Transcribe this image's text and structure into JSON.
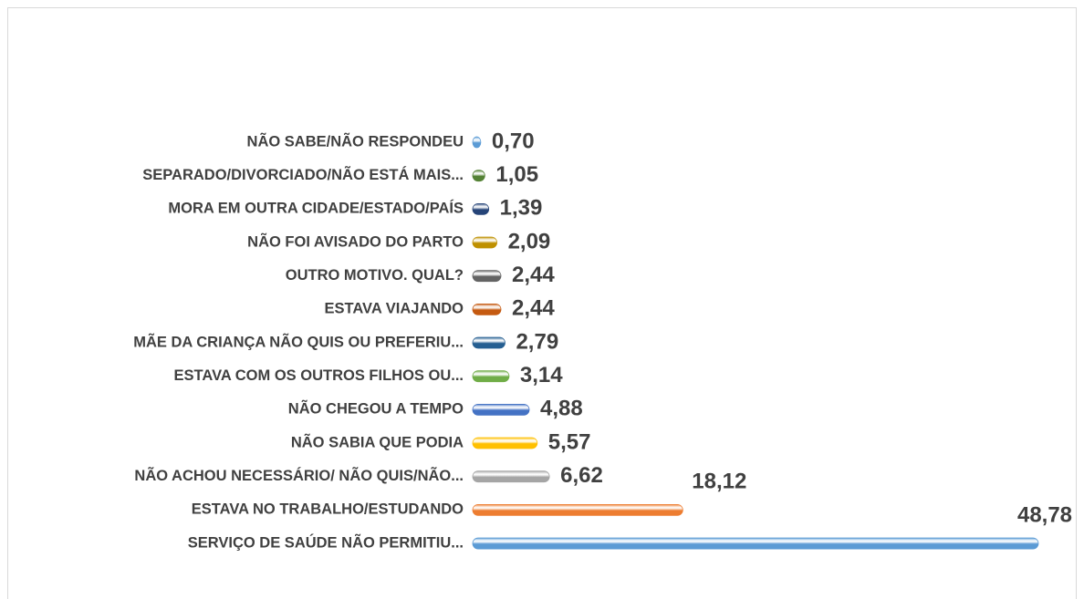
{
  "chart_data": {
    "type": "bar",
    "orientation": "horizontal",
    "categories": [
      "NÃO SABE/NÃO RESPONDEU",
      "SEPARADO/DIVORCIADO/NÃO ESTÁ MAIS...",
      "MORA EM OUTRA CIDADE/ESTADO/PAÍS",
      "NÃO FOI AVISADO DO PARTO",
      "OUTRO MOTIVO. QUAL?",
      "ESTAVA VIAJANDO",
      "MÃE DA CRIANÇA NÃO QUIS OU PREFERIU...",
      "ESTAVA COM OS OUTROS FILHOS OU...",
      "NÃO CHEGOU A TEMPO",
      "NÃO SABIA QUE PODIA",
      "NÃO ACHOU NECESSÁRIO/ NÃO QUIS/NÃO...",
      "ESTAVA NO TRABALHO/ESTUDANDO",
      "SERVIÇO DE SAÚDE NÃO PERMITIU..."
    ],
    "values": [
      0.7,
      1.05,
      1.39,
      2.09,
      2.44,
      2.44,
      2.79,
      3.14,
      4.88,
      5.57,
      6.62,
      18.12,
      48.78
    ],
    "value_labels": [
      "0,70",
      "1,05",
      "1,39",
      "2,09",
      "2,44",
      "2,44",
      "2,79",
      "3,14",
      "4,88",
      "5,57",
      "6,62",
      "18,12",
      "48,78"
    ],
    "colors": [
      "#5b9bd5",
      "#548235",
      "#264478",
      "#bf9000",
      "#636363",
      "#c55a11",
      "#255e91",
      "#70ad47",
      "#4472c4",
      "#ffc000",
      "#a5a5a5",
      "#ed7d31",
      "#5b9bd5"
    ]
  }
}
